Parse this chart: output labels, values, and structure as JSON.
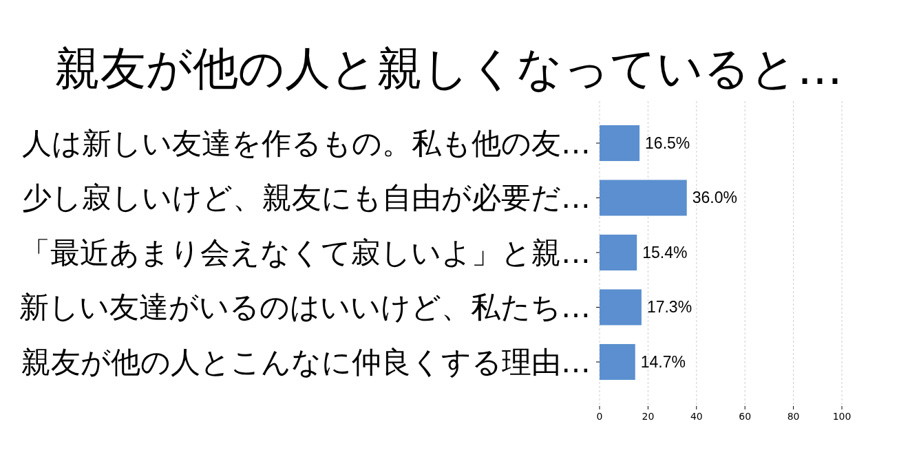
{
  "chart_data": {
    "type": "bar",
    "orientation": "horizontal",
    "title": "親友が他の人と親しくなっていると…",
    "categories": [
      "人は新しい友達を作るもの。私も他の友…",
      "少し寂しいけど、親友にも自由が必要だ…",
      "「最近あまり会えなくて寂しいよ」と親…",
      "新しい友達がいるのはいいけど、私たち…",
      "親友が他の人とこんなに仲良くする理由…"
    ],
    "values": [
      16.5,
      36.0,
      15.4,
      17.3,
      14.7
    ],
    "value_labels": [
      "16.5%",
      "36.0%",
      "15.4%",
      "17.3%",
      "14.7%"
    ],
    "color": "#5b8fcf",
    "xlim": [
      0,
      100
    ],
    "xticks": [
      0,
      20,
      40,
      60,
      80,
      100
    ],
    "grid": "x"
  }
}
